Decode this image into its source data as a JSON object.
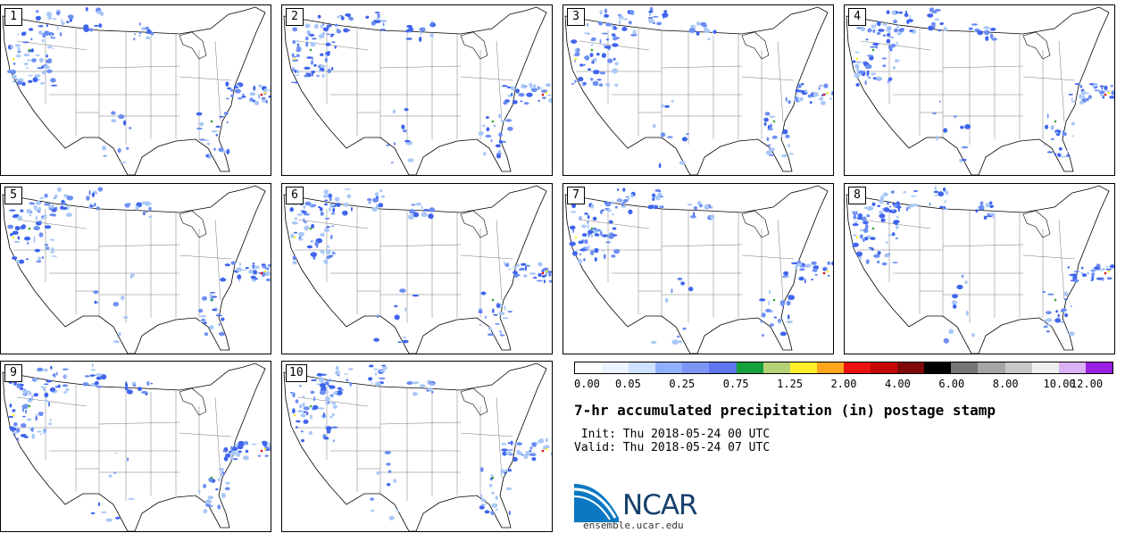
{
  "members": [
    "1",
    "2",
    "3",
    "4",
    "5",
    "6",
    "7",
    "8",
    "9",
    "10"
  ],
  "colors": {
    "precip_light": "#a9c8f7",
    "precip_mid": "#6d8ff3",
    "precip_heavy": "#3f65ec",
    "green": "#31a82d",
    "yellow": "#ffee22",
    "red": "#e00000"
  },
  "colorbar": {
    "swatches": [
      "#ffffff",
      "#eaf3ff",
      "#cfe1ff",
      "#8fb1fb",
      "#7d96f6",
      "#5e77ef",
      "#14a03c",
      "#b7d276",
      "#fff02b",
      "#ffa61c",
      "#ea1010",
      "#c40808",
      "#7e0808",
      "#000000",
      "#777777",
      "#a6a6a6",
      "#c8c8c8",
      "#eeeeee",
      "#dbb2f3",
      "#9a21e0"
    ],
    "labels": [
      "0.00",
      "0.05",
      "0.25",
      "0.75",
      "1.25",
      "2.00",
      "4.00",
      "6.00",
      "8.00",
      "10.00",
      "12.00"
    ]
  },
  "title": "7-hr accumulated precipitation (in) postage stamp",
  "init_text": " Init: Thu 2018-05-24 00 UTC",
  "valid_text": "Valid: Thu 2018-05-24 07 UTC",
  "logo": {
    "name": "NCAR",
    "url": "ensemble.ucar.edu"
  }
}
